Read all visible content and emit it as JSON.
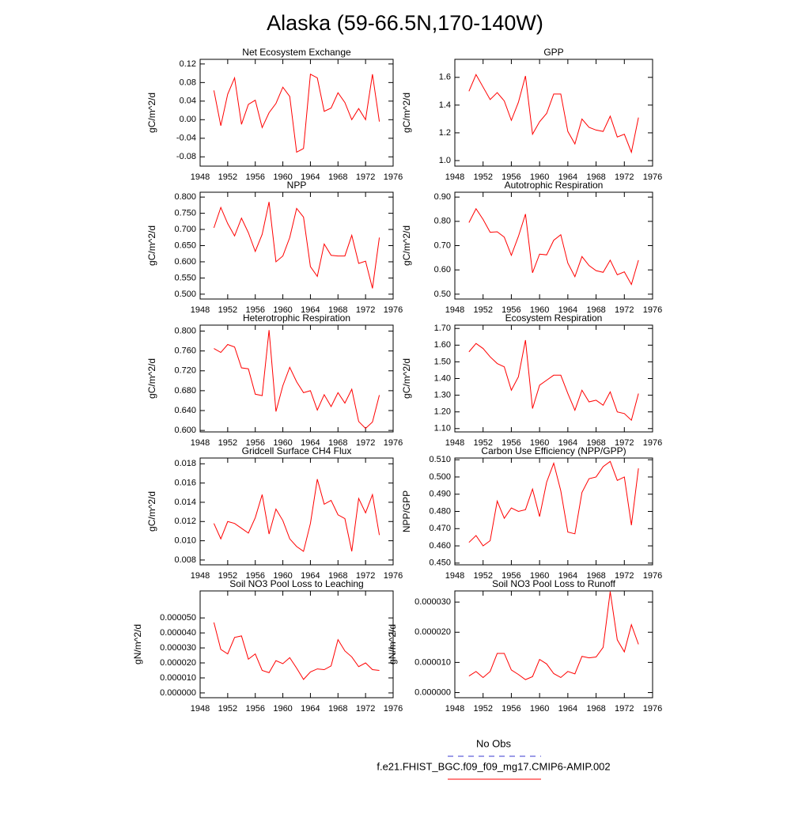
{
  "title": "Alaska (59-66.5N,170-140W)",
  "legend": [
    {
      "label": "No Obs",
      "color": "#3a3ad0",
      "dashed": true
    },
    {
      "label": "f.e21.FHIST_BGC.f09_f09_mg17.CMIP6-AMIP.002",
      "color": "#ff0000",
      "dashed": false
    }
  ],
  "chart_data": [
    {
      "type": "line",
      "title": "Net Ecosystem Exchange",
      "ylabel": "gC/m^2/d",
      "x": [
        1950,
        1951,
        1952,
        1953,
        1954,
        1955,
        1956,
        1957,
        1958,
        1959,
        1960,
        1961,
        1962,
        1963,
        1964,
        1965,
        1966,
        1967,
        1968,
        1969,
        1970,
        1971,
        1972,
        1973,
        1974
      ],
      "series": [
        {
          "color": "#ff0000",
          "values": [
            0.063,
            -0.013,
            0.055,
            0.09,
            -0.01,
            0.033,
            0.042,
            -0.017,
            0.015,
            0.035,
            0.07,
            0.05,
            -0.07,
            -0.062,
            0.098,
            0.09,
            0.018,
            0.025,
            0.058,
            0.037,
            0.0,
            0.024,
            0.0,
            0.098,
            -0.004
          ]
        }
      ],
      "xlim": [
        1948,
        1976
      ],
      "xticks": [
        1948,
        1952,
        1956,
        1960,
        1964,
        1968,
        1972,
        1976
      ],
      "ylim": [
        -0.1,
        0.13
      ],
      "yticks": [
        {
          "value": -0.08,
          "label": "-0.08"
        },
        {
          "value": -0.04,
          "label": "-0.04"
        },
        {
          "value": 0,
          "label": "0.00"
        },
        {
          "value": 0.04,
          "label": "0.04"
        },
        {
          "value": 0.08,
          "label": "0.08"
        },
        {
          "value": 0.12,
          "label": "0.12"
        }
      ]
    },
    {
      "type": "line",
      "title": "GPP",
      "ylabel": "gC/m^2/d",
      "x": [
        1950,
        1951,
        1952,
        1953,
        1954,
        1955,
        1956,
        1957,
        1958,
        1959,
        1960,
        1961,
        1962,
        1963,
        1964,
        1965,
        1966,
        1967,
        1968,
        1969,
        1970,
        1971,
        1972,
        1973,
        1974
      ],
      "series": [
        {
          "color": "#ff0000",
          "values": [
            1.5,
            1.62,
            1.53,
            1.44,
            1.49,
            1.43,
            1.29,
            1.42,
            1.61,
            1.19,
            1.28,
            1.34,
            1.48,
            1.48,
            1.21,
            1.12,
            1.3,
            1.24,
            1.22,
            1.21,
            1.32,
            1.17,
            1.19,
            1.06,
            1.31
          ]
        }
      ],
      "xlim": [
        1948,
        1976
      ],
      "xticks": [
        1948,
        1952,
        1956,
        1960,
        1964,
        1968,
        1972,
        1976
      ],
      "ylim": [
        0.96,
        1.73
      ],
      "yticks": [
        {
          "value": 1.0,
          "label": "1.0"
        },
        {
          "value": 1.2,
          "label": "1.2"
        },
        {
          "value": 1.4,
          "label": "1.4"
        },
        {
          "value": 1.6,
          "label": "1.6"
        }
      ]
    },
    {
      "type": "line",
      "title": "NPP",
      "ylabel": "gC/m^2/d",
      "x": [
        1950,
        1951,
        1952,
        1953,
        1954,
        1955,
        1956,
        1957,
        1958,
        1959,
        1960,
        1961,
        1962,
        1963,
        1964,
        1965,
        1966,
        1967,
        1968,
        1969,
        1970,
        1971,
        1972,
        1973,
        1974
      ],
      "series": [
        {
          "color": "#ff0000",
          "values": [
            0.705,
            0.768,
            0.718,
            0.68,
            0.735,
            0.69,
            0.632,
            0.685,
            0.785,
            0.6,
            0.618,
            0.675,
            0.765,
            0.738,
            0.585,
            0.555,
            0.655,
            0.62,
            0.618,
            0.618,
            0.682,
            0.595,
            0.602,
            0.518,
            0.675
          ]
        }
      ],
      "xlim": [
        1948,
        1976
      ],
      "xticks": [
        1948,
        1952,
        1956,
        1960,
        1964,
        1968,
        1972,
        1976
      ],
      "ylim": [
        0.485,
        0.815
      ],
      "yticks": [
        {
          "value": 0.5,
          "label": "0.500"
        },
        {
          "value": 0.55,
          "label": "0.550"
        },
        {
          "value": 0.6,
          "label": "0.600"
        },
        {
          "value": 0.65,
          "label": "0.650"
        },
        {
          "value": 0.7,
          "label": "0.700"
        },
        {
          "value": 0.75,
          "label": "0.750"
        },
        {
          "value": 0.8,
          "label": "0.800"
        }
      ]
    },
    {
      "type": "line",
      "title": "Autotrophic Respiration",
      "ylabel": "gC/m^2/d",
      "x": [
        1950,
        1951,
        1952,
        1953,
        1954,
        1955,
        1956,
        1957,
        1958,
        1959,
        1960,
        1961,
        1962,
        1963,
        1964,
        1965,
        1966,
        1967,
        1968,
        1969,
        1970,
        1971,
        1972,
        1973,
        1974
      ],
      "series": [
        {
          "color": "#ff0000",
          "values": [
            0.795,
            0.852,
            0.808,
            0.755,
            0.757,
            0.735,
            0.66,
            0.738,
            0.83,
            0.588,
            0.665,
            0.662,
            0.722,
            0.745,
            0.628,
            0.572,
            0.655,
            0.618,
            0.597,
            0.59,
            0.64,
            0.58,
            0.592,
            0.54,
            0.64
          ]
        }
      ],
      "xlim": [
        1948,
        1976
      ],
      "xticks": [
        1948,
        1952,
        1956,
        1960,
        1964,
        1968,
        1972,
        1976
      ],
      "ylim": [
        0.48,
        0.92
      ],
      "yticks": [
        {
          "value": 0.5,
          "label": "0.50"
        },
        {
          "value": 0.6,
          "label": "0.60"
        },
        {
          "value": 0.7,
          "label": "0.70"
        },
        {
          "value": 0.8,
          "label": "0.80"
        },
        {
          "value": 0.9,
          "label": "0.90"
        }
      ]
    },
    {
      "type": "line",
      "title": "Heterotrophic Respiration",
      "ylabel": "gC/m^2/d",
      "x": [
        1950,
        1951,
        1952,
        1953,
        1954,
        1955,
        1956,
        1957,
        1958,
        1959,
        1960,
        1961,
        1962,
        1963,
        1964,
        1965,
        1966,
        1967,
        1968,
        1969,
        1970,
        1971,
        1972,
        1973,
        1974
      ],
      "series": [
        {
          "color": "#ff0000",
          "values": [
            0.765,
            0.757,
            0.773,
            0.768,
            0.726,
            0.724,
            0.673,
            0.67,
            0.802,
            0.638,
            0.69,
            0.727,
            0.698,
            0.676,
            0.68,
            0.641,
            0.672,
            0.648,
            0.676,
            0.655,
            0.683,
            0.618,
            0.604,
            0.617,
            0.671
          ]
        }
      ],
      "xlim": [
        1948,
        1976
      ],
      "xticks": [
        1948,
        1952,
        1956,
        1960,
        1964,
        1968,
        1972,
        1976
      ],
      "ylim": [
        0.597,
        0.812
      ],
      "yticks": [
        {
          "value": 0.6,
          "label": "0.600"
        },
        {
          "value": 0.64,
          "label": "0.640"
        },
        {
          "value": 0.68,
          "label": "0.680"
        },
        {
          "value": 0.72,
          "label": "0.720"
        },
        {
          "value": 0.76,
          "label": "0.760"
        },
        {
          "value": 0.8,
          "label": "0.800"
        }
      ]
    },
    {
      "type": "line",
      "title": "Ecosystem Respiration",
      "ylabel": "gC/m^2/d",
      "x": [
        1950,
        1951,
        1952,
        1953,
        1954,
        1955,
        1956,
        1957,
        1958,
        1959,
        1960,
        1961,
        1962,
        1963,
        1964,
        1965,
        1966,
        1967,
        1968,
        1969,
        1970,
        1971,
        1972,
        1973,
        1974
      ],
      "series": [
        {
          "color": "#ff0000",
          "values": [
            1.56,
            1.61,
            1.58,
            1.53,
            1.49,
            1.47,
            1.33,
            1.41,
            1.63,
            1.22,
            1.36,
            1.39,
            1.42,
            1.42,
            1.31,
            1.21,
            1.33,
            1.26,
            1.27,
            1.24,
            1.32,
            1.2,
            1.19,
            1.15,
            1.31
          ]
        }
      ],
      "xlim": [
        1948,
        1976
      ],
      "xticks": [
        1948,
        1952,
        1956,
        1960,
        1964,
        1968,
        1972,
        1976
      ],
      "ylim": [
        1.08,
        1.72
      ],
      "yticks": [
        {
          "value": 1.1,
          "label": "1.10"
        },
        {
          "value": 1.2,
          "label": "1.20"
        },
        {
          "value": 1.3,
          "label": "1.30"
        },
        {
          "value": 1.4,
          "label": "1.40"
        },
        {
          "value": 1.5,
          "label": "1.50"
        },
        {
          "value": 1.6,
          "label": "1.60"
        },
        {
          "value": 1.7,
          "label": "1.70"
        }
      ]
    },
    {
      "type": "line",
      "title": "Gridcell Surface CH4 Flux",
      "ylabel": "gC/m^2/d",
      "x": [
        1950,
        1951,
        1952,
        1953,
        1954,
        1955,
        1956,
        1957,
        1958,
        1959,
        1960,
        1961,
        1962,
        1963,
        1964,
        1965,
        1966,
        1967,
        1968,
        1969,
        1970,
        1971,
        1972,
        1973,
        1974
      ],
      "series": [
        {
          "color": "#ff0000",
          "values": [
            0.0118,
            0.0102,
            0.012,
            0.0118,
            0.0113,
            0.0108,
            0.0124,
            0.0148,
            0.0107,
            0.0133,
            0.0121,
            0.0102,
            0.0094,
            0.0089,
            0.0118,
            0.0164,
            0.0138,
            0.0142,
            0.0127,
            0.0123,
            0.0089,
            0.0144,
            0.0129,
            0.0148,
            0.0106
          ]
        }
      ],
      "xlim": [
        1948,
        1976
      ],
      "xticks": [
        1948,
        1952,
        1956,
        1960,
        1964,
        1968,
        1972,
        1976
      ],
      "ylim": [
        0.0075,
        0.0186
      ],
      "yticks": [
        {
          "value": 0.008,
          "label": "0.008"
        },
        {
          "value": 0.01,
          "label": "0.010"
        },
        {
          "value": 0.012,
          "label": "0.012"
        },
        {
          "value": 0.014,
          "label": "0.014"
        },
        {
          "value": 0.016,
          "label": "0.016"
        },
        {
          "value": 0.018,
          "label": "0.018"
        }
      ]
    },
    {
      "type": "line",
      "title": "Carbon Use Efficiency (NPP/GPP)",
      "ylabel": "NPP/GPP",
      "x": [
        1950,
        1951,
        1952,
        1953,
        1954,
        1955,
        1956,
        1957,
        1958,
        1959,
        1960,
        1961,
        1962,
        1963,
        1964,
        1965,
        1966,
        1967,
        1968,
        1969,
        1970,
        1971,
        1972,
        1973,
        1974
      ],
      "series": [
        {
          "color": "#ff0000",
          "values": [
            0.462,
            0.466,
            0.46,
            0.463,
            0.486,
            0.476,
            0.482,
            0.48,
            0.481,
            0.493,
            0.477,
            0.497,
            0.508,
            0.492,
            0.468,
            0.467,
            0.491,
            0.499,
            0.5,
            0.506,
            0.509,
            0.498,
            0.5,
            0.472,
            0.505
          ]
        }
      ],
      "xlim": [
        1948,
        1976
      ],
      "xticks": [
        1948,
        1952,
        1956,
        1960,
        1964,
        1968,
        1972,
        1976
      ],
      "ylim": [
        0.449,
        0.511
      ],
      "yticks": [
        {
          "value": 0.45,
          "label": "0.450"
        },
        {
          "value": 0.46,
          "label": "0.460"
        },
        {
          "value": 0.47,
          "label": "0.470"
        },
        {
          "value": 0.48,
          "label": "0.480"
        },
        {
          "value": 0.49,
          "label": "0.490"
        },
        {
          "value": 0.5,
          "label": "0.500"
        },
        {
          "value": 0.51,
          "label": "0.510"
        }
      ]
    },
    {
      "type": "line",
      "title": "Soil NO3 Pool Loss to Leaching",
      "ylabel": "gN/m^2/d",
      "x": [
        1950,
        1951,
        1952,
        1953,
        1954,
        1955,
        1956,
        1957,
        1958,
        1959,
        1960,
        1961,
        1962,
        1963,
        1964,
        1965,
        1966,
        1967,
        1968,
        1969,
        1970,
        1971,
        1972,
        1973,
        1974
      ],
      "series": [
        {
          "color": "#ff0000",
          "values": [
            4.7e-05,
            2.9e-05,
            2.6e-05,
            3.7e-05,
            3.8e-05,
            2.25e-05,
            2.6e-05,
            1.5e-05,
            1.35e-05,
            2.15e-05,
            1.95e-05,
            2.35e-05,
            1.65e-05,
            9e-06,
            1.4e-05,
            1.6e-05,
            1.55e-05,
            1.8e-05,
            3.55e-05,
            2.8e-05,
            2.4e-05,
            1.75e-05,
            2e-05,
            1.55e-05,
            1.5e-05
          ]
        }
      ],
      "xlim": [
        1948,
        1976
      ],
      "xticks": [
        1948,
        1952,
        1956,
        1960,
        1964,
        1968,
        1972,
        1976
      ],
      "ylim": [
        -3.2e-06,
        6.8e-05
      ],
      "yticks": [
        {
          "value": 0,
          "label": "0.000000"
        },
        {
          "value": 1e-05,
          "label": "0.000010"
        },
        {
          "value": 2e-05,
          "label": "0.000020"
        },
        {
          "value": 3e-05,
          "label": "0.000030"
        },
        {
          "value": 4e-05,
          "label": "0.000040"
        },
        {
          "value": 5e-05,
          "label": "0.000050"
        }
      ]
    },
    {
      "type": "line",
      "title": "Soil NO3 Pool Loss to Runoff",
      "ylabel": "gN/m^2/d",
      "x": [
        1950,
        1951,
        1952,
        1953,
        1954,
        1955,
        1956,
        1957,
        1958,
        1959,
        1960,
        1961,
        1962,
        1963,
        1964,
        1965,
        1966,
        1967,
        1968,
        1969,
        1970,
        1971,
        1972,
        1973,
        1974
      ],
      "series": [
        {
          "color": "#ff0000",
          "values": [
            5.5e-06,
            7e-06,
            5e-06,
            7e-06,
            1.3e-05,
            1.3e-05,
            7.5e-06,
            6e-06,
            4.3e-06,
            5.3e-06,
            1.1e-05,
            9.5e-06,
            6.3e-06,
            5e-06,
            7e-06,
            6.2e-06,
            1.2e-05,
            1.15e-05,
            1.18e-05,
            1.5e-05,
            3.35e-05,
            1.75e-05,
            1.35e-05,
            2.25e-05,
            1.6e-05
          ]
        }
      ],
      "xlim": [
        1948,
        1976
      ],
      "xticks": [
        1948,
        1952,
        1956,
        1960,
        1964,
        1968,
        1972,
        1976
      ],
      "ylim": [
        -1.7e-06,
        3.37e-05
      ],
      "yticks": [
        {
          "value": 0,
          "label": "0.000000"
        },
        {
          "value": 1e-05,
          "label": "0.000010"
        },
        {
          "value": 2e-05,
          "label": "0.000020"
        },
        {
          "value": 3e-05,
          "label": "0.000030"
        }
      ]
    }
  ]
}
